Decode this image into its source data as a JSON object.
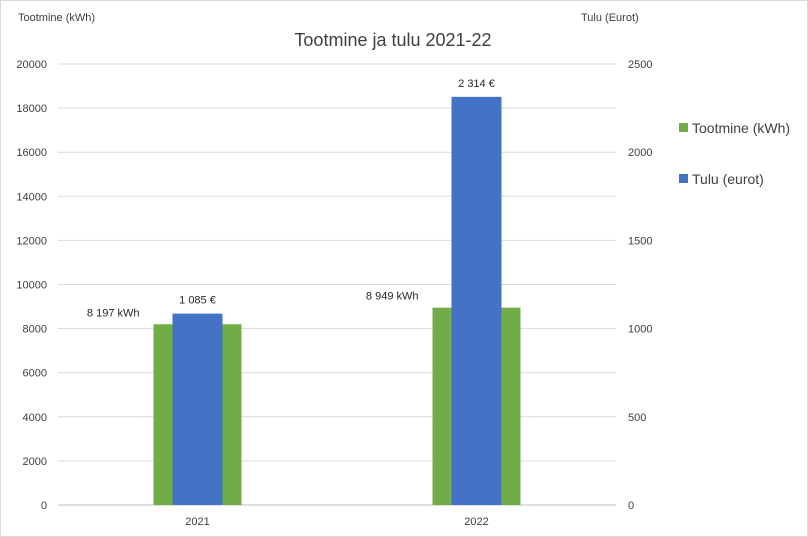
{
  "chart_data": {
    "type": "bar",
    "title": "Tootmine ja tulu 2021-22",
    "y_left_label": "Tootmine (kWh)",
    "y_right_label": "Tulu (Eurot)",
    "categories": [
      "2021",
      "2022"
    ],
    "y_left_lim": [
      0,
      20000
    ],
    "y_left_ticks": [
      "0",
      "2000",
      "4000",
      "6000",
      "8000",
      "10000",
      "12000",
      "14000",
      "16000",
      "18000",
      "20000"
    ],
    "y_right_lim": [
      0,
      2500
    ],
    "y_right_ticks": [
      "0",
      "500",
      "1000",
      "1500",
      "2000",
      "2500"
    ],
    "grid": true,
    "legend_position": "right",
    "series": [
      {
        "name": "Tootmine (kWh)",
        "axis": "left",
        "color": "#70ad47",
        "values": [
          8197,
          8949
        ],
        "labels": [
          "8 197 kWh",
          "8 949 kWh"
        ]
      },
      {
        "name": "Tulu (eurot)",
        "axis": "right",
        "color": "#4472c4",
        "values": [
          1085,
          2314
        ],
        "labels": [
          "1 085 €",
          "2 314 €"
        ]
      }
    ]
  }
}
